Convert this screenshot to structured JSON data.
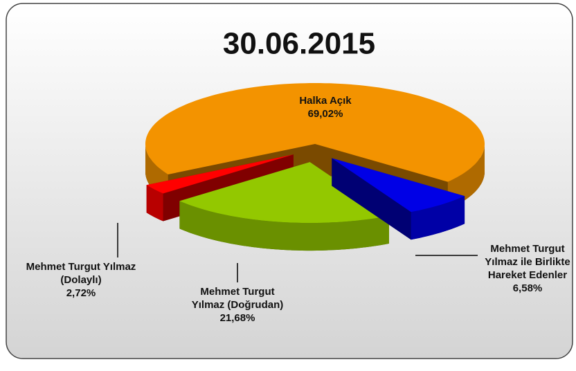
{
  "chart_data": {
    "type": "pie",
    "title": "30.06.2015",
    "categories": [
      "Halka Açık",
      "Mehmet Turgut Yılmaz ile Birlikte Hareket Edenler",
      "Mehmet Turgut Yılmaz (Doğrudan)",
      "Mehmet Turgut Yılmaz (Dolaylı)"
    ],
    "values": [
      69.02,
      6.58,
      21.68,
      2.72
    ],
    "value_labels": [
      "69,02%",
      "6,58%",
      "21,68%",
      "2,72%"
    ],
    "colors": [
      "#f39300",
      "#0000e6",
      "#93c800",
      "#ff0000"
    ]
  }
}
